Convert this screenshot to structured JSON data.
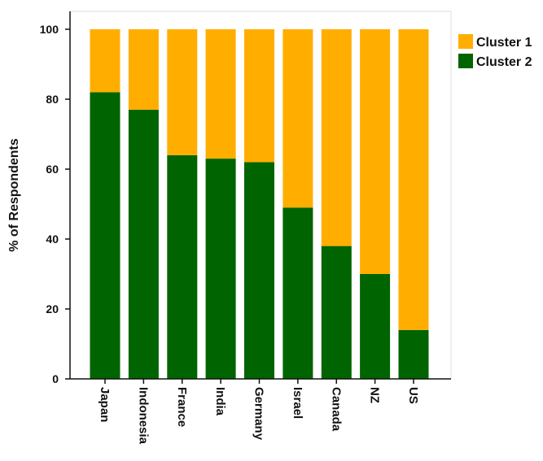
{
  "chart_data": {
    "type": "bar",
    "stacked": true,
    "categories": [
      "Japan",
      "Indonesia",
      "France",
      "India",
      "Germany",
      "Israel",
      "Canada",
      "NZ",
      "US"
    ],
    "series": [
      {
        "name": "Cluster 2",
        "color": "#006400",
        "values": [
          82,
          77,
          64,
          63,
          62,
          49,
          38,
          30,
          14
        ]
      },
      {
        "name": "Cluster 1",
        "color": "#FFAE00",
        "values": [
          18,
          23,
          36,
          37,
          38,
          51,
          62,
          70,
          86
        ]
      }
    ],
    "ylabel": "% of Respondents",
    "xlabel": "",
    "ylim": [
      0,
      100
    ],
    "yticks": [
      "0",
      "20",
      "40",
      "60",
      "80",
      "100"
    ],
    "grid": false,
    "legend": {
      "position": "top-right",
      "entries": [
        {
          "label": "Cluster 1",
          "color": "#FFAE00"
        },
        {
          "label": "Cluster 2",
          "color": "#006400"
        }
      ]
    },
    "plot_background": "#FFFFFF"
  }
}
